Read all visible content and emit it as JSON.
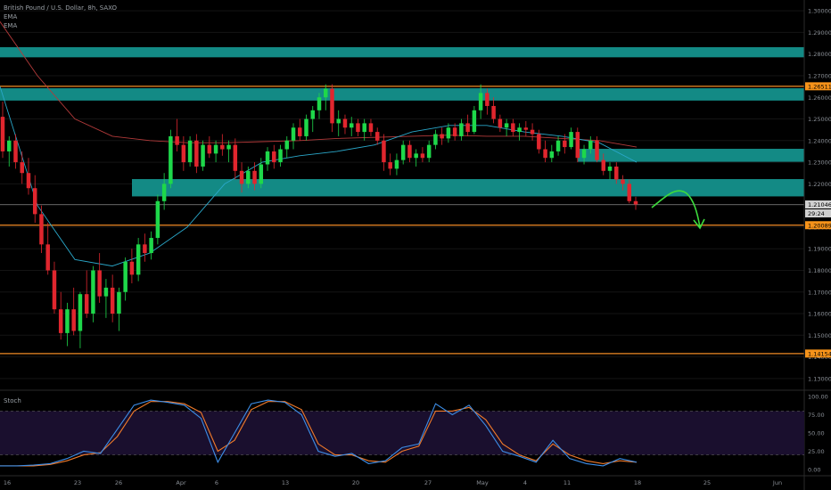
{
  "legend": {
    "symbol": "British Pound / U.S. Dollar, 8h, SAXO",
    "ema1": "EMA",
    "ema2": "EMA"
  },
  "stoch_label": "Stoch",
  "colors": {
    "background": "#000000",
    "bull": "#1ed84a",
    "bear": "#e0262e",
    "zone": "#138a85",
    "level_line": "#f08a24",
    "ema_fast": "#2aa7c9",
    "ema_slow": "#b33a3a",
    "stoch_k": "#3d8ee8",
    "stoch_d": "#f07a2a",
    "stoch_band": "#1a0f2e",
    "badge_orange": "#f7931a",
    "badge_gray": "#d0d0d0",
    "arrow": "#3ddc3d"
  },
  "chart_data": {
    "type": "candlestick",
    "x_ticks": [
      "16",
      "23",
      "26",
      "Apr",
      "6",
      "13",
      "20",
      "27",
      "May",
      "4",
      "11",
      "18",
      "25",
      "Jun"
    ],
    "y_ticks": [
      "1.30000",
      "1.29000",
      "1.28000",
      "1.27000",
      "1.26000",
      "1.25000",
      "1.24000",
      "1.23000",
      "1.22000",
      "1.21000",
      "1.20000",
      "1.19000",
      "1.18000",
      "1.17000",
      "1.16000",
      "1.15000",
      "1.14000",
      "1.13000"
    ],
    "ylim": [
      1.125,
      1.305
    ],
    "price_badges": [
      {
        "value": "1.26511",
        "style": "orange"
      },
      {
        "value": "1.21046",
        "style": "gray"
      },
      {
        "value": "29:24",
        "style": "gray"
      },
      {
        "value": "1.20089",
        "style": "orange"
      },
      {
        "value": "1.14154",
        "style": "orange"
      }
    ],
    "horizontal_levels": [
      1.26511,
      1.20089,
      1.14154
    ],
    "current_price": 1.21046,
    "zones": [
      {
        "low": 1.2785,
        "high": 1.2832
      },
      {
        "low": 1.2585,
        "high": 1.2642
      },
      {
        "low": 1.2302,
        "high": 1.2362
      },
      {
        "low": 1.2142,
        "high": 1.2222
      }
    ],
    "candles": [
      [
        1.251,
        1.258,
        1.232,
        1.235
      ],
      [
        1.235,
        1.242,
        1.228,
        1.24
      ],
      [
        1.24,
        1.243,
        1.227,
        1.23
      ],
      [
        1.23,
        1.235,
        1.22,
        1.225
      ],
      [
        1.225,
        1.232,
        1.215,
        1.218
      ],
      [
        1.218,
        1.224,
        1.202,
        1.206
      ],
      [
        1.206,
        1.21,
        1.188,
        1.192
      ],
      [
        1.192,
        1.202,
        1.178,
        1.18
      ],
      [
        1.18,
        1.184,
        1.16,
        1.162
      ],
      [
        1.162,
        1.17,
        1.148,
        1.151
      ],
      [
        1.151,
        1.165,
        1.145,
        1.162
      ],
      [
        1.162,
        1.172,
        1.15,
        1.152
      ],
      [
        1.152,
        1.17,
        1.144,
        1.169
      ],
      [
        1.169,
        1.18,
        1.158,
        1.16
      ],
      [
        1.16,
        1.182,
        1.156,
        1.18
      ],
      [
        1.18,
        1.188,
        1.165,
        1.168
      ],
      [
        1.168,
        1.176,
        1.158,
        1.172
      ],
      [
        1.172,
        1.178,
        1.156,
        1.16
      ],
      [
        1.16,
        1.172,
        1.152,
        1.17
      ],
      [
        1.17,
        1.186,
        1.166,
        1.184
      ],
      [
        1.184,
        1.19,
        1.174,
        1.178
      ],
      [
        1.178,
        1.195,
        1.175,
        1.192
      ],
      [
        1.192,
        1.197,
        1.184,
        1.188
      ],
      [
        1.188,
        1.198,
        1.185,
        1.195
      ],
      [
        1.195,
        1.215,
        1.192,
        1.212
      ],
      [
        1.212,
        1.225,
        1.208,
        1.22
      ],
      [
        1.22,
        1.245,
        1.218,
        1.242
      ],
      [
        1.242,
        1.25,
        1.235,
        1.238
      ],
      [
        1.238,
        1.242,
        1.226,
        1.23
      ],
      [
        1.23,
        1.242,
        1.228,
        1.24
      ],
      [
        1.24,
        1.243,
        1.225,
        1.228
      ],
      [
        1.228,
        1.24,
        1.226,
        1.238
      ],
      [
        1.238,
        1.242,
        1.232,
        1.234
      ],
      [
        1.234,
        1.24,
        1.23,
        1.238
      ],
      [
        1.238,
        1.243,
        1.233,
        1.236
      ],
      [
        1.236,
        1.24,
        1.23,
        1.238
      ],
      [
        1.238,
        1.241,
        1.222,
        1.226
      ],
      [
        1.226,
        1.23,
        1.216,
        1.22
      ],
      [
        1.22,
        1.228,
        1.218,
        1.226
      ],
      [
        1.226,
        1.23,
        1.217,
        1.22
      ],
      [
        1.22,
        1.232,
        1.218,
        1.229
      ],
      [
        1.229,
        1.237,
        1.226,
        1.235
      ],
      [
        1.235,
        1.238,
        1.227,
        1.23
      ],
      [
        1.23,
        1.238,
        1.228,
        1.236
      ],
      [
        1.236,
        1.242,
        1.232,
        1.24
      ],
      [
        1.24,
        1.248,
        1.236,
        1.246
      ],
      [
        1.246,
        1.25,
        1.24,
        1.242
      ],
      [
        1.242,
        1.252,
        1.24,
        1.25
      ],
      [
        1.25,
        1.256,
        1.244,
        1.254
      ],
      [
        1.254,
        1.262,
        1.25,
        1.26
      ],
      [
        1.26,
        1.266,
        1.254,
        1.264
      ],
      [
        1.264,
        1.266,
        1.244,
        1.248
      ],
      [
        1.248,
        1.254,
        1.242,
        1.25
      ],
      [
        1.25,
        1.252,
        1.243,
        1.246
      ],
      [
        1.246,
        1.251,
        1.242,
        1.248
      ],
      [
        1.248,
        1.25,
        1.242,
        1.244
      ],
      [
        1.244,
        1.25,
        1.24,
        1.248
      ],
      [
        1.248,
        1.25,
        1.242,
        1.244
      ],
      [
        1.244,
        1.246,
        1.238,
        1.24
      ],
      [
        1.24,
        1.243,
        1.226,
        1.23
      ],
      [
        1.23,
        1.234,
        1.224,
        1.227
      ],
      [
        1.227,
        1.234,
        1.224,
        1.231
      ],
      [
        1.231,
        1.24,
        1.229,
        1.238
      ],
      [
        1.238,
        1.24,
        1.23,
        1.232
      ],
      [
        1.232,
        1.236,
        1.228,
        1.234
      ],
      [
        1.234,
        1.237,
        1.23,
        1.232
      ],
      [
        1.232,
        1.24,
        1.23,
        1.238
      ],
      [
        1.238,
        1.245,
        1.236,
        1.243
      ],
      [
        1.243,
        1.246,
        1.238,
        1.241
      ],
      [
        1.241,
        1.248,
        1.239,
        1.246
      ],
      [
        1.246,
        1.248,
        1.24,
        1.242
      ],
      [
        1.242,
        1.25,
        1.24,
        1.248
      ],
      [
        1.248,
        1.252,
        1.242,
        1.244
      ],
      [
        1.244,
        1.256,
        1.243,
        1.254
      ],
      [
        1.254,
        1.266,
        1.25,
        1.262
      ],
      [
        1.262,
        1.264,
        1.252,
        1.256
      ],
      [
        1.256,
        1.26,
        1.248,
        1.25
      ],
      [
        1.25,
        1.252,
        1.244,
        1.246
      ],
      [
        1.246,
        1.25,
        1.242,
        1.248
      ],
      [
        1.248,
        1.25,
        1.242,
        1.244
      ],
      [
        1.244,
        1.248,
        1.24,
        1.246
      ],
      [
        1.246,
        1.249,
        1.242,
        1.245
      ],
      [
        1.245,
        1.248,
        1.24,
        1.243
      ],
      [
        1.243,
        1.245,
        1.234,
        1.236
      ],
      [
        1.236,
        1.24,
        1.23,
        1.232
      ],
      [
        1.232,
        1.238,
        1.23,
        1.235
      ],
      [
        1.235,
        1.242,
        1.233,
        1.24
      ],
      [
        1.24,
        1.243,
        1.234,
        1.237
      ],
      [
        1.237,
        1.246,
        1.236,
        1.244
      ],
      [
        1.244,
        1.246,
        1.23,
        1.232
      ],
      [
        1.232,
        1.238,
        1.229,
        1.236
      ],
      [
        1.236,
        1.242,
        1.234,
        1.24
      ],
      [
        1.24,
        1.242,
        1.23,
        1.231
      ],
      [
        1.231,
        1.234,
        1.224,
        1.226
      ],
      [
        1.226,
        1.23,
        1.222,
        1.228
      ],
      [
        1.228,
        1.23,
        1.22,
        1.222
      ],
      [
        1.222,
        1.224,
        1.217,
        1.22
      ],
      [
        1.22,
        1.222,
        1.211,
        1.212
      ],
      [
        1.212,
        1.214,
        1.208,
        1.2105
      ]
    ],
    "ema_fast": [
      1.265,
      1.21,
      1.185,
      1.182,
      1.188,
      1.2,
      1.22,
      1.23,
      1.233,
      1.235,
      1.238,
      1.244,
      1.247,
      1.247,
      1.244,
      1.242,
      1.239,
      1.23
    ],
    "ema_slow": [
      1.295,
      1.27,
      1.25,
      1.242,
      1.24,
      1.239,
      1.239,
      1.2395,
      1.24,
      1.241,
      1.2415,
      1.242,
      1.2425,
      1.242,
      1.242,
      1.241,
      1.24,
      1.237
    ],
    "stochastic": {
      "y_ticks": [
        "100.00",
        "75.00",
        "50.00",
        "25.00",
        "0.00"
      ],
      "band": [
        20,
        80
      ],
      "k": [
        5,
        5,
        6,
        8,
        15,
        25,
        22,
        55,
        88,
        95,
        92,
        88,
        70,
        10,
        50,
        90,
        95,
        92,
        75,
        25,
        18,
        22,
        8,
        12,
        30,
        35,
        90,
        75,
        88,
        60,
        25,
        18,
        10,
        40,
        15,
        8,
        5,
        15,
        10
      ],
      "d": [
        5,
        5,
        5,
        7,
        12,
        20,
        23,
        45,
        80,
        93,
        93,
        90,
        78,
        25,
        40,
        82,
        93,
        93,
        82,
        35,
        20,
        20,
        12,
        10,
        25,
        32,
        80,
        80,
        85,
        68,
        35,
        20,
        12,
        35,
        20,
        12,
        8,
        12,
        10
      ]
    }
  }
}
